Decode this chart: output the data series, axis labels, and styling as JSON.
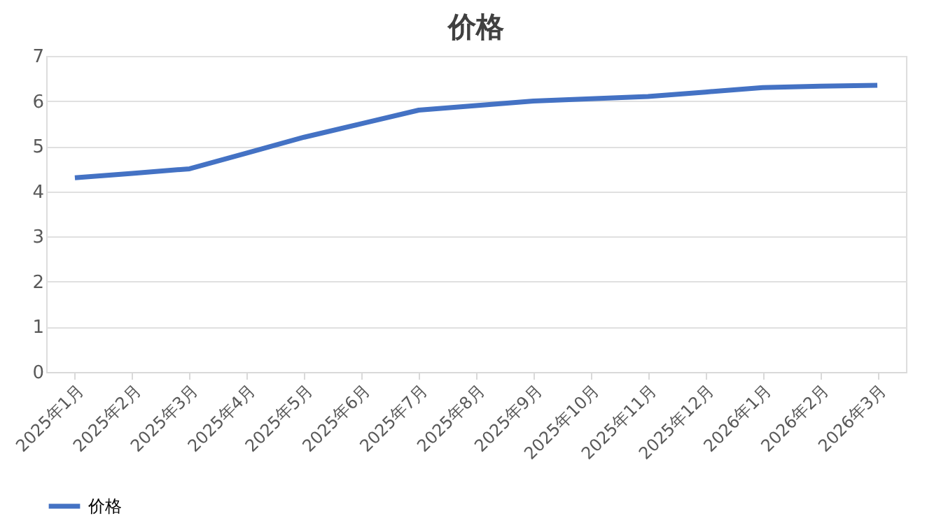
{
  "chart_data": {
    "type": "line",
    "title": "价格",
    "categories": [
      "2025年1月",
      "2025年2月",
      "2025年3月",
      "2025年4月",
      "2025年5月",
      "2025年6月",
      "2025年7月",
      "2025年8月",
      "2025年9月",
      "2025年10月",
      "2025年11月",
      "2025年12月",
      "2026年1月",
      "2026年2月",
      "2026年3月"
    ],
    "series": [
      {
        "name": "价格",
        "color": "#4472c4",
        "values": [
          4.3,
          4.4,
          4.5,
          4.85,
          5.2,
          5.5,
          5.8,
          5.9,
          6.0,
          6.05,
          6.1,
          6.2,
          6.3,
          6.33,
          6.35
        ]
      }
    ],
    "ylim": [
      0,
      7
    ],
    "yticks": [
      0,
      1,
      2,
      3,
      4,
      5,
      6,
      7
    ],
    "grid": "y",
    "legend": "bottom",
    "marker": "none",
    "line_style": "solid"
  }
}
